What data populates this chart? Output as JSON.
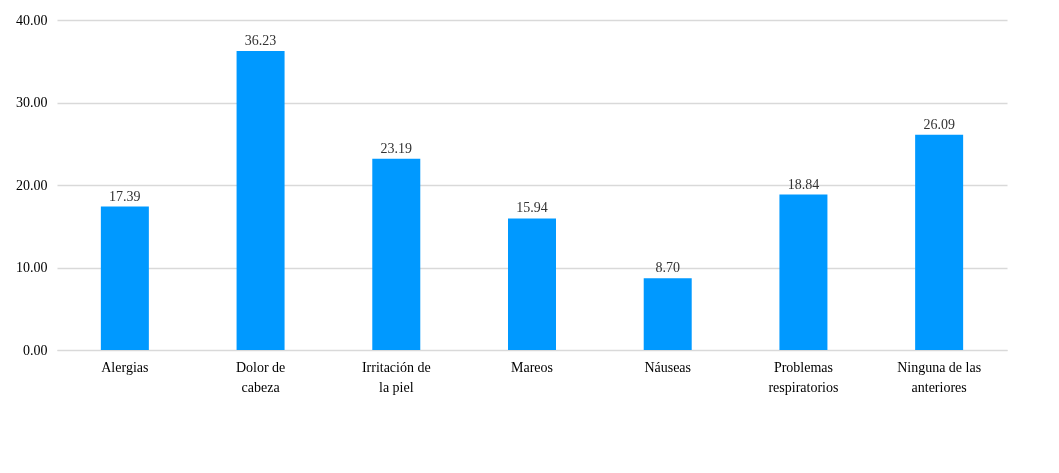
{
  "chart_data": {
    "type": "bar",
    "categories": [
      "Alergias",
      "Dolor de cabeza",
      "Irritación de la piel",
      "Mareos",
      "Náuseas",
      "Problemas respiratorios",
      "Ninguna de las anteriores"
    ],
    "values": [
      17.39,
      36.23,
      23.19,
      15.94,
      8.7,
      18.84,
      26.09
    ],
    "value_labels": [
      "17.39",
      "36.23",
      "23.19",
      "15.94",
      "8.70",
      "18.84",
      "26.09"
    ],
    "color": "#0099ff",
    "ylim": [
      0,
      40
    ],
    "yticks": [
      {
        "value": 0,
        "label": "0.00"
      },
      {
        "value": 10,
        "label": "10.00"
      },
      {
        "value": 20,
        "label": "20.00"
      },
      {
        "value": 30,
        "label": "30.00"
      },
      {
        "value": 40,
        "label": "40.00"
      }
    ],
    "grid": "y"
  }
}
